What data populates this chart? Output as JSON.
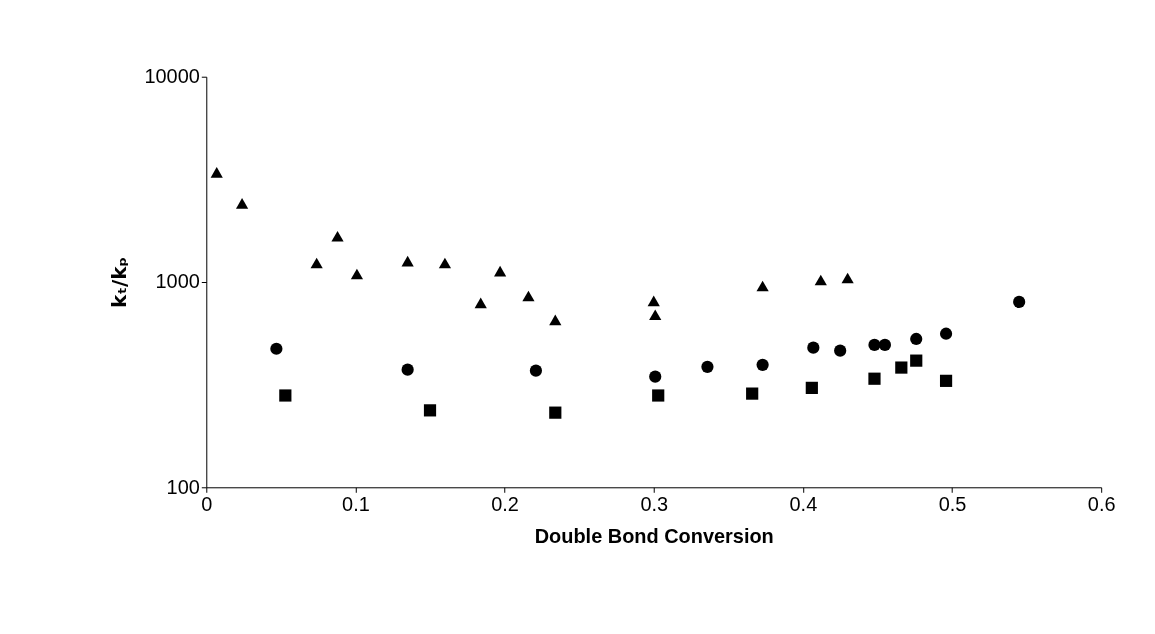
{
  "chart_data": {
    "type": "scatter",
    "xlabel": "Double Bond Conversion",
    "ylabel": "kₜ/kₚ",
    "log": "y",
    "grid": false,
    "legend": false,
    "xlim": [
      0,
      0.6
    ],
    "xticks": [
      0,
      0.1,
      0.2,
      0.3,
      0.4,
      0.5,
      0.6
    ],
    "ylim": [
      100,
      10000
    ],
    "yticks": [
      100,
      1000,
      10000
    ],
    "series": [
      {
        "color": "#000000",
        "marker": "triangle",
        "x": [
          0.007,
          0.024,
          0.074,
          0.088,
          0.101,
          0.135,
          0.16,
          0.184,
          0.197,
          0.216,
          0.234,
          0.3,
          0.301,
          0.373,
          0.412,
          0.43
        ],
        "values": [
          3420,
          2415,
          1237,
          1672,
          1094,
          1264,
          1237,
          791,
          1130,
          855,
          654,
          809,
          692,
          957,
          1022,
          1045
        ]
      },
      {
        "color": "#000000",
        "marker": "circle",
        "x": [
          0.047,
          0.135,
          0.221,
          0.301,
          0.336,
          0.373,
          0.407,
          0.425,
          0.448,
          0.455,
          0.476,
          0.496,
          0.545
        ],
        "values": [
          473,
          374,
          370,
          346,
          386,
          395,
          479,
          463,
          494,
          494,
          528,
          560,
          800
        ]
      },
      {
        "color": "#000000",
        "marker": "square",
        "x": [
          0.053,
          0.15,
          0.234,
          0.303,
          0.366,
          0.406,
          0.448,
          0.466,
          0.476,
          0.496
        ],
        "values": [
          280,
          237,
          231,
          280,
          286,
          305,
          338,
          383,
          414,
          330
        ]
      }
    ]
  }
}
